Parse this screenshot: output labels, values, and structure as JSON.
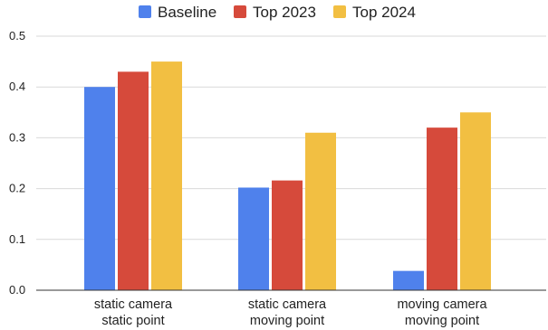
{
  "chart_data": {
    "type": "bar",
    "title": "",
    "xlabel": "",
    "ylabel": "",
    "ylim": [
      0,
      0.5
    ],
    "yticks": [
      "0.0",
      "0.1",
      "0.2",
      "0.3",
      "0.4",
      "0.5"
    ],
    "grid": true,
    "legend_position": "top-center",
    "categories": [
      [
        "static camera",
        "static point"
      ],
      [
        "static camera",
        "moving point"
      ],
      [
        "moving camera",
        "moving point"
      ]
    ],
    "series": [
      {
        "name": "Baseline",
        "color": "#4f81ec",
        "values": [
          0.4,
          0.202,
          0.038
        ]
      },
      {
        "name": "Top 2023",
        "color": "#d64a3b",
        "values": [
          0.43,
          0.216,
          0.32
        ]
      },
      {
        "name": "Top 2024",
        "color": "#f2bf42",
        "values": [
          0.45,
          0.31,
          0.35
        ]
      }
    ]
  }
}
